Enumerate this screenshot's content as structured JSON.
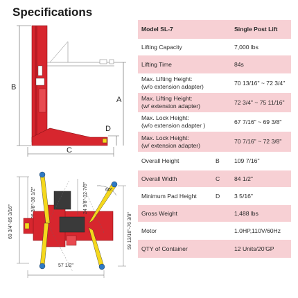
{
  "title": "Specifications",
  "drawing_top": {
    "label_a": "A",
    "label_b": "B",
    "label_c": "C",
    "label_d": "D"
  },
  "drawing_bottom": {
    "dim_left": "69 3/4\"-85 3/16\"",
    "dim_arm_left": "26 3/8\"-38 1/2\"",
    "dim_arm_mid": "24 9/8\"-32 7/8\"",
    "dim_arm_right": "59 13/16\"-76 3/8\"",
    "angle": "60°",
    "dim_bottom": "57 1/2\""
  },
  "specs": [
    {
      "label": "Model SL-7",
      "letter": "",
      "value": "Single Post Lift"
    },
    {
      "label": "Lifting Capacity",
      "letter": "",
      "value": "7,000 lbs"
    },
    {
      "label": "Lifting Time",
      "letter": "",
      "value": "84s"
    },
    {
      "label": "Max. Lifting Height:\n(w/o extension adapter)",
      "letter": "",
      "value": "70 13/16\" ~ 72 3/4\""
    },
    {
      "label": "Max. Lifting Height:\n(w/ extension adapter)",
      "letter": "",
      "value": "72 3/4\" ~ 75 11/16\""
    },
    {
      "label": "Max. Lock Height:\n(w/o extension adapter )",
      "letter": "",
      "value": "67 7/16\" ~ 69 3/8\""
    },
    {
      "label": "Max. Lock Height:\n(w/ extension adapter)",
      "letter": "",
      "value": "70 7/16\" ~ 72 3/8\""
    },
    {
      "label": "Overall Height",
      "letter": "B",
      "value": "109 7/16\""
    },
    {
      "label": "Overall Width",
      "letter": "C",
      "value": "84 1/2\""
    },
    {
      "label": "Minimum Pad Height",
      "letter": "D",
      "value": "3 5/16\""
    },
    {
      "label": "Gross Weight",
      "letter": "",
      "value": "1,488 lbs"
    },
    {
      "label": "Motor",
      "letter": "",
      "value": "1.0HP,110V/60Hz"
    },
    {
      "label": "QTY of Container",
      "letter": "",
      "value": "12 Units/20'GP"
    }
  ],
  "colors": {
    "highlight": "#f7d0d4",
    "lift_red": "#d7262e",
    "arm_yellow": "#f5d81c"
  }
}
